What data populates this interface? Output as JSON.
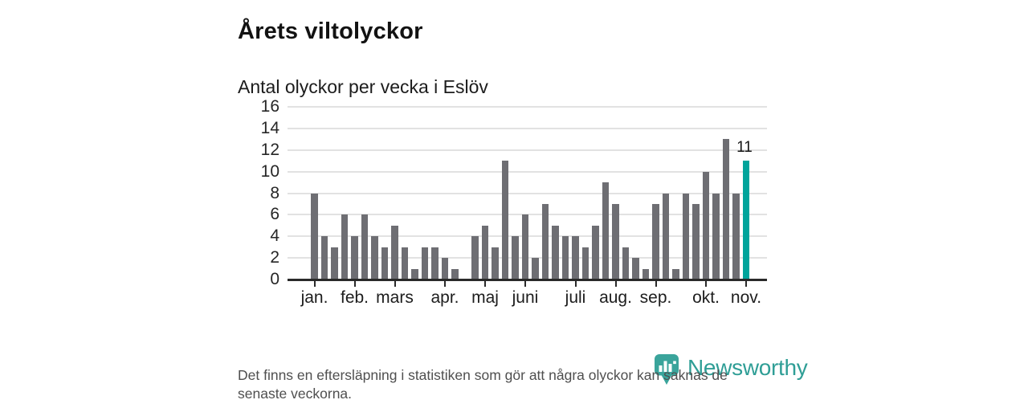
{
  "header": {
    "title": "Årets viltolyckor",
    "subtitle": "Antal olyckor per vecka i Eslöv"
  },
  "footer": {
    "note": "Det finns en eftersläpning i statistiken som gör att några olyckor kan saknas de senaste veckorna.",
    "lines": [
      "Det finns en eftersläpning i statistiken som gör att några olyckor kan saknas de",
      "senaste veckorna."
    ]
  },
  "branding": {
    "logo_text": "Newsworthy",
    "logo_icon": "newsworthy-bubble-barchart-icon"
  },
  "chart_data": {
    "type": "bar",
    "title": "Årets viltolyckor",
    "subtitle": "Antal olyckor per vecka i Eslöv",
    "x_unit": "vecka",
    "values": [
      8,
      4,
      3,
      6,
      4,
      6,
      4,
      3,
      5,
      3,
      1,
      3,
      3,
      2,
      1,
      0,
      4,
      5,
      3,
      11,
      4,
      6,
      2,
      7,
      5,
      4,
      4,
      3,
      5,
      9,
      7,
      3,
      2,
      1,
      7,
      8,
      1,
      8,
      7,
      10,
      8,
      13,
      8,
      11
    ],
    "week_count": 44,
    "highlight_index": 43,
    "highlight_value": 11,
    "highlight_label": "11",
    "yticks": [
      0,
      2,
      4,
      6,
      8,
      10,
      12,
      14,
      16
    ],
    "ylim": [
      0,
      16
    ],
    "month_ticks": [
      {
        "label": "jan.",
        "index": 0
      },
      {
        "label": "feb.",
        "index": 4
      },
      {
        "label": "mars",
        "index": 8
      },
      {
        "label": "apr.",
        "index": 13
      },
      {
        "label": "maj",
        "index": 17
      },
      {
        "label": "juni",
        "index": 21
      },
      {
        "label": "juli",
        "index": 26
      },
      {
        "label": "aug.",
        "index": 30
      },
      {
        "label": "sep.",
        "index": 34
      },
      {
        "label": "okt.",
        "index": 39
      },
      {
        "label": "nov.",
        "index": 43
      }
    ],
    "grid": true,
    "legend_position": "none",
    "colors": {
      "bar": "#6e6e73",
      "highlight": "#00a49b",
      "grid": "#e2e2e2",
      "axis": "#2a2a2a",
      "logo_teal": "#3aa49b"
    }
  }
}
